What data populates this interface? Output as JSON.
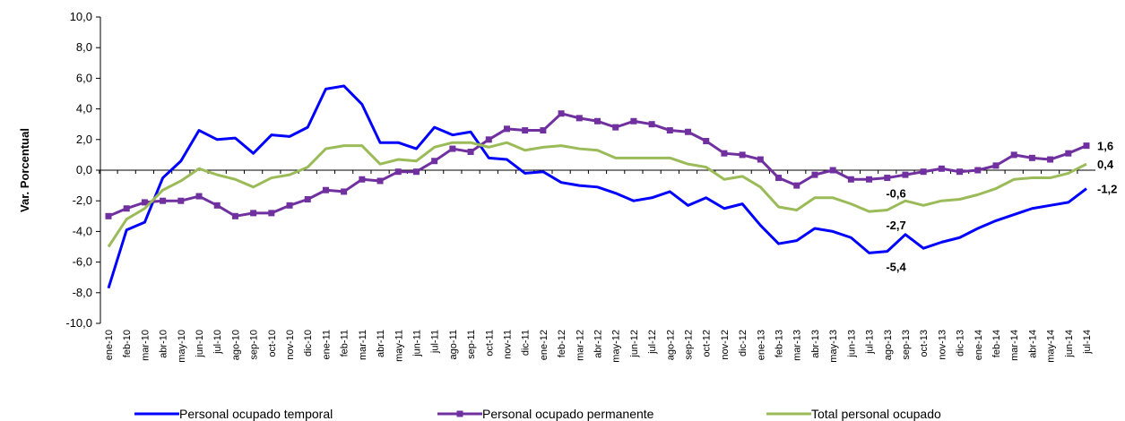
{
  "chart_data": {
    "type": "line",
    "ylabel": "Var. Porcentual",
    "categories": [
      "ene-10",
      "feb-10",
      "mar-10",
      "abr-10",
      "may-10",
      "jun-10",
      "jul-10",
      "ago-10",
      "sep-10",
      "oct-10",
      "nov-10",
      "dic-10",
      "ene-11",
      "feb-11",
      "mar-11",
      "abr-11",
      "may-11",
      "jun-11",
      "jul-11",
      "ago-11",
      "sep-11",
      "oct-11",
      "nov-11",
      "dic-11",
      "ene-12",
      "feb-12",
      "mar-12",
      "abr-12",
      "may-12",
      "jun-12",
      "jul-12",
      "ago-12",
      "sep-12",
      "oct-12",
      "nov-12",
      "dic-12",
      "ene-13",
      "feb-13",
      "mar-13",
      "abr-13",
      "may-13",
      "jun-13",
      "jul-13",
      "ago-13",
      "sep-13",
      "oct-13",
      "nov-13",
      "dic-13",
      "ene-14",
      "feb-14",
      "mar-14",
      "abr-14",
      "may-14",
      "jun-14",
      "jul-14"
    ],
    "series": [
      {
        "name": "Personal ocupado temporal",
        "color": "#0000ff",
        "label_color": "#1f7ab8",
        "marker": false,
        "values": [
          -7.7,
          -3.9,
          -3.4,
          -0.5,
          0.6,
          2.6,
          2.0,
          2.1,
          1.1,
          2.3,
          2.2,
          2.8,
          5.3,
          5.5,
          4.3,
          1.8,
          1.8,
          1.4,
          2.8,
          2.3,
          2.5,
          0.8,
          0.7,
          -0.2,
          -0.1,
          -0.8,
          -1.0,
          -1.1,
          -1.5,
          -2.0,
          -1.8,
          -1.4,
          -2.3,
          -1.8,
          -2.5,
          -2.2,
          -3.6,
          -4.8,
          -4.6,
          -3.8,
          -4.0,
          -4.4,
          -5.4,
          -5.3,
          -4.2,
          -5.1,
          -4.7,
          -4.4,
          -3.8,
          -3.3,
          -2.9,
          -2.5,
          -2.3,
          -2.1,
          -1.2
        ],
        "value_labels": [
          null,
          null,
          null,
          null,
          null,
          null,
          null,
          null,
          null,
          null,
          null,
          null,
          null,
          null,
          null,
          null,
          null,
          null,
          null,
          null,
          null,
          null,
          null,
          null,
          null,
          null,
          null,
          null,
          null,
          null,
          null,
          null,
          null,
          null,
          null,
          null,
          null,
          null,
          null,
          null,
          null,
          null,
          "-5,4",
          null,
          null,
          null,
          null,
          null,
          null,
          null,
          null,
          null,
          null,
          null,
          "-1,2"
        ]
      },
      {
        "name": "Personal ocupado permanente",
        "color": "#7030a0",
        "label_color": "#604a7b",
        "marker": true,
        "values": [
          -3.0,
          -2.5,
          -2.1,
          -2.0,
          -2.0,
          -1.7,
          -2.3,
          -3.0,
          -2.8,
          -2.8,
          -2.3,
          -1.9,
          -1.3,
          -1.4,
          -0.6,
          -0.7,
          -0.1,
          -0.1,
          0.6,
          1.4,
          1.2,
          2.0,
          2.7,
          2.6,
          2.6,
          3.7,
          3.4,
          3.2,
          2.8,
          3.2,
          3.0,
          2.6,
          2.5,
          1.9,
          1.1,
          1.0,
          0.7,
          -0.5,
          -1.0,
          -0.3,
          0.0,
          -0.6,
          -0.6,
          -0.5,
          -0.3,
          -0.1,
          0.1,
          -0.1,
          0.0,
          0.3,
          1.0,
          0.8,
          0.7,
          1.1,
          1.6
        ],
        "value_labels": [
          null,
          null,
          null,
          null,
          null,
          null,
          null,
          null,
          null,
          null,
          null,
          null,
          null,
          null,
          null,
          null,
          null,
          null,
          null,
          null,
          null,
          null,
          null,
          null,
          null,
          null,
          null,
          null,
          null,
          null,
          null,
          null,
          null,
          null,
          null,
          null,
          null,
          null,
          null,
          null,
          null,
          null,
          "-0,6",
          null,
          null,
          null,
          null,
          null,
          null,
          null,
          null,
          null,
          null,
          null,
          "1,6"
        ]
      },
      {
        "name": "Total personal  ocupado",
        "color": "#9bbb59",
        "label_color": "#77933c",
        "marker": false,
        "values": [
          -5.0,
          -3.2,
          -2.5,
          -1.3,
          -0.7,
          0.1,
          -0.3,
          -0.6,
          -1.1,
          -0.5,
          -0.3,
          0.2,
          1.4,
          1.6,
          1.6,
          0.4,
          0.7,
          0.6,
          1.5,
          1.8,
          1.8,
          1.5,
          1.8,
          1.3,
          1.5,
          1.6,
          1.4,
          1.3,
          0.8,
          0.8,
          0.8,
          0.8,
          0.4,
          0.2,
          -0.6,
          -0.4,
          -1.1,
          -2.4,
          -2.6,
          -1.8,
          -1.8,
          -2.2,
          -2.7,
          -2.6,
          -2.0,
          -2.3,
          -2.0,
          -1.9,
          -1.6,
          -1.2,
          -0.6,
          -0.5,
          -0.5,
          -0.2,
          0.4
        ],
        "value_labels": [
          null,
          null,
          null,
          null,
          null,
          null,
          null,
          null,
          null,
          null,
          null,
          null,
          null,
          null,
          null,
          null,
          null,
          null,
          null,
          null,
          null,
          null,
          null,
          null,
          null,
          null,
          null,
          null,
          null,
          null,
          null,
          null,
          null,
          null,
          null,
          null,
          null,
          null,
          null,
          null,
          null,
          null,
          "-2,7",
          null,
          null,
          null,
          null,
          null,
          null,
          null,
          null,
          null,
          null,
          null,
          "0,4"
        ]
      }
    ],
    "ylim": [
      -10,
      10
    ],
    "yticks": [
      {
        "value": -10,
        "label": "-10,0"
      },
      {
        "value": -8,
        "label": "-8,0"
      },
      {
        "value": -6,
        "label": "-6,0"
      },
      {
        "value": -4,
        "label": "-4,0"
      },
      {
        "value": -2,
        "label": "-2,0"
      },
      {
        "value": 0,
        "label": "0,0"
      },
      {
        "value": 2,
        "label": "2,0"
      },
      {
        "value": 4,
        "label": "4,0"
      },
      {
        "value": 6,
        "label": "6,0"
      },
      {
        "value": 8,
        "label": "8,0"
      },
      {
        "value": 10,
        "label": "10,0"
      }
    ],
    "grid": false,
    "legend": "bottom"
  }
}
